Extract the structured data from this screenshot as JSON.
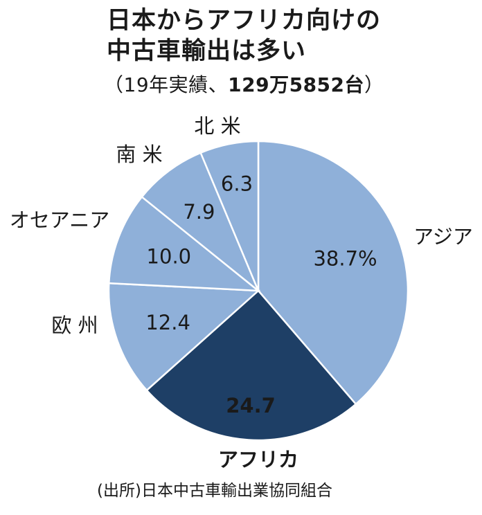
{
  "header": {
    "title_line1": "日本からアフリカ向けの",
    "title_line2": "中古車輸出は多い",
    "subtitle_open": "（19年実績、",
    "subtitle_total": "129万5852台",
    "subtitle_close": "）"
  },
  "source": "(出所)日本中古車輸出業協同組合",
  "chart_data": {
    "type": "pie",
    "slices": [
      {
        "label": "アジア",
        "value": 38.7,
        "value_label": "38.7%",
        "color": "#8fb0d9",
        "label_color": "#1a1a1a",
        "bold": false,
        "outer_bold": false
      },
      {
        "label": "アフリカ",
        "value": 24.7,
        "value_label": "24.7",
        "color": "#1e3f66",
        "label_color": "#ffffff",
        "bold": true,
        "outer_bold": true
      },
      {
        "label": "欧 州",
        "value": 12.4,
        "value_label": "12.4",
        "color": "#8fb0d9",
        "label_color": "#1a1a1a",
        "bold": false,
        "outer_bold": false
      },
      {
        "label": "オセアニア",
        "value": 10.0,
        "value_label": "10.0",
        "color": "#8fb0d9",
        "label_color": "#1a1a1a",
        "bold": false,
        "outer_bold": false
      },
      {
        "label": "南 米",
        "value": 7.9,
        "value_label": "7.9",
        "color": "#8fb0d9",
        "label_color": "#1a1a1a",
        "bold": false,
        "outer_bold": false
      },
      {
        "label": "北 米",
        "value": 6.3,
        "value_label": "6.3",
        "color": "#8fb0d9",
        "label_color": "#1a1a1a",
        "bold": false,
        "outer_bold": false
      }
    ],
    "start": "12 o'clock",
    "direction": "clockwise",
    "legend": "none"
  }
}
